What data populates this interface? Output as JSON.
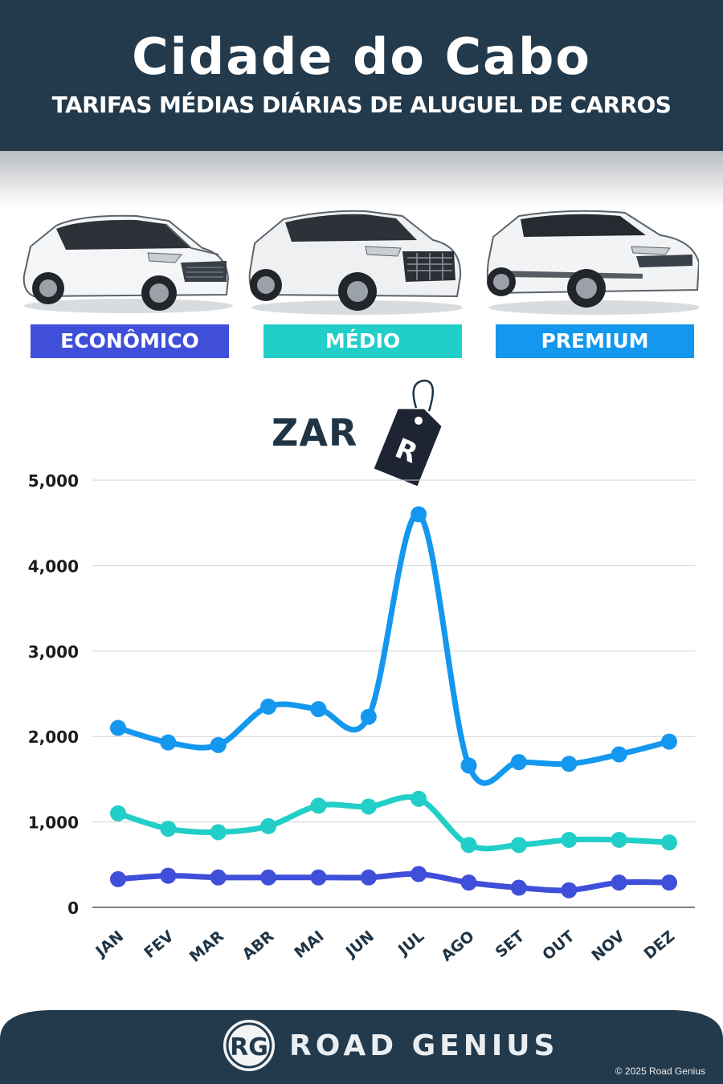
{
  "header": {
    "title": "Cidade do Cabo",
    "subtitle": "TARIFAS MÉDIAS DIÁRIAS DE ALUGUEL DE CARROS"
  },
  "categories": [
    {
      "label": "ECONÔMICO",
      "color": "#3f4fd9",
      "car": "hatchback-car-icon"
    },
    {
      "label": "MÉDIO",
      "color": "#22cfc8",
      "car": "suv-car-icon"
    },
    {
      "label": "PREMIUM",
      "color": "#1497ee",
      "car": "luxury-suv-car-icon"
    }
  ],
  "currency": {
    "code": "ZAR",
    "symbol": "R"
  },
  "chart_data": {
    "type": "line",
    "x": [
      "JAN",
      "FEV",
      "MAR",
      "ABR",
      "MAI",
      "JUN",
      "JUL",
      "AGO",
      "SET",
      "OUT",
      "NOV",
      "DEZ"
    ],
    "ylim": [
      0,
      5000
    ],
    "yticks": [
      0,
      1000,
      2000,
      3000,
      4000,
      5000
    ],
    "ytick_labels": [
      "0",
      "1,000",
      "2,000",
      "3,000",
      "4,000",
      "5,000"
    ],
    "grid": true,
    "series": [
      {
        "name": "PREMIUM",
        "color": "#1497ee",
        "values": [
          2100,
          1930,
          1900,
          2350,
          2320,
          2230,
          4600,
          1660,
          1700,
          1680,
          1790,
          1940
        ]
      },
      {
        "name": "MÉDIO",
        "color": "#22cfc8",
        "values": [
          1100,
          920,
          880,
          950,
          1190,
          1180,
          1270,
          730,
          730,
          790,
          790,
          760
        ]
      },
      {
        "name": "ECONÔMICO",
        "color": "#3f4fd9",
        "values": [
          330,
          370,
          350,
          350,
          350,
          350,
          390,
          290,
          230,
          200,
          290,
          290
        ]
      }
    ]
  },
  "footer": {
    "logo_monogram": "RG",
    "brand": "ROAD GENIUS",
    "copyright": "© 2025 Road Genius"
  }
}
